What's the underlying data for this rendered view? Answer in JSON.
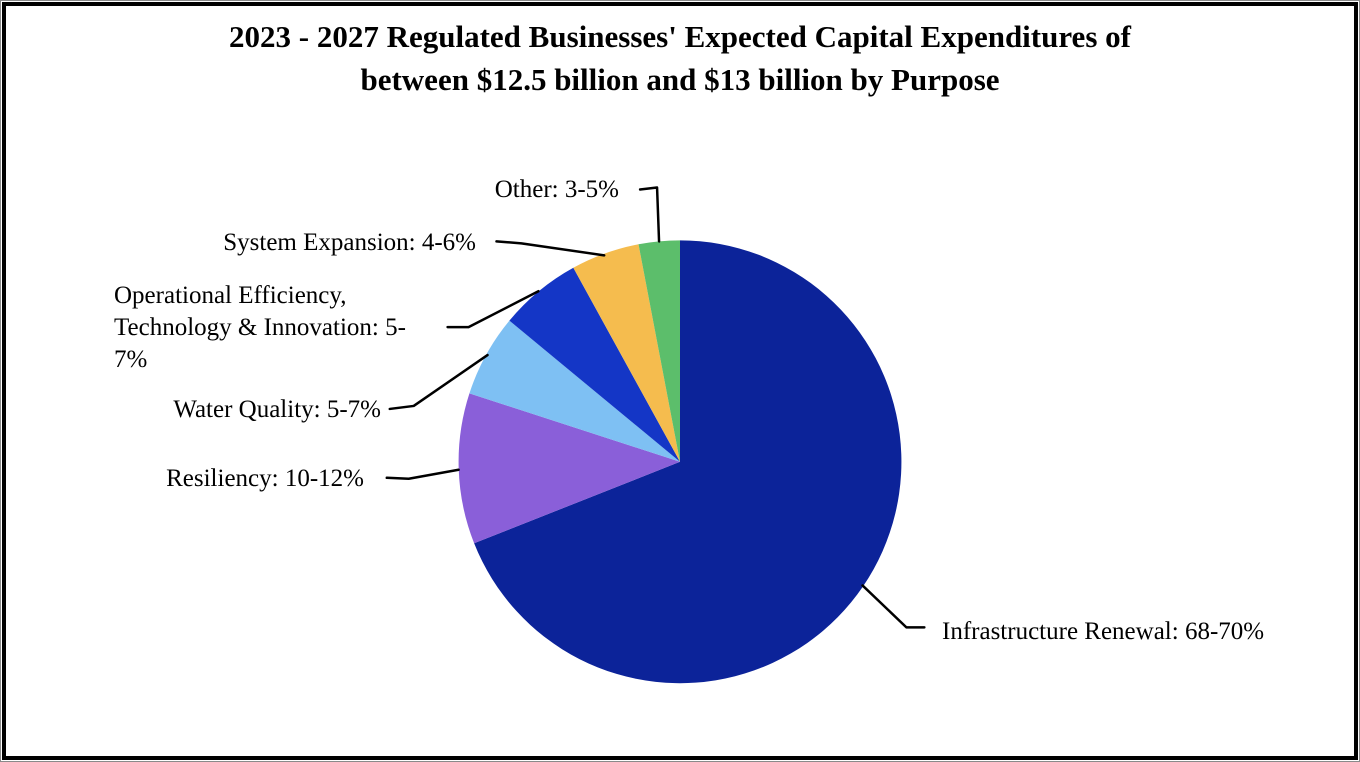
{
  "title": {
    "line1": "2023 - 2027 Regulated Businesses' Expected Capital Expenditures of",
    "line2": "between $12.5 billion and $13 billion by Purpose"
  },
  "chart_data": {
    "type": "pie",
    "title": "2023 - 2027 Regulated Businesses' Expected Capital Expenditures of between $12.5 billion and $13 billion by Purpose",
    "start_angle_deg": 0,
    "direction": "clockwise",
    "legend_position": "callout-labels",
    "slices": [
      {
        "id": "infrastructure-renewal",
        "label": "Infrastructure Renewal",
        "range": "68-70%",
        "value": 69,
        "color": "#0C2399",
        "label_text": "Infrastructure Renewal: 68-70%"
      },
      {
        "id": "resiliency",
        "label": "Resiliency",
        "range": "10-12%",
        "value": 11,
        "color": "#8A5FD9",
        "label_text": "Resiliency: 10-12%"
      },
      {
        "id": "water-quality",
        "label": "Water Quality",
        "range": "5-7%",
        "value": 6,
        "color": "#7EC0F3",
        "label_text": "Water Quality: 5-7%"
      },
      {
        "id": "operational-efficiency",
        "label": "Operational Efficiency, Technology & Innovation",
        "range": "5-7%",
        "value": 6,
        "color": "#1436C6",
        "label_text": "Operational Efficiency, Technology & Innovation: 5-7%",
        "label_lines": [
          "Operational Efficiency,",
          "Technology & Innovation: 5-",
          "7%"
        ]
      },
      {
        "id": "system-expansion",
        "label": "System Expansion",
        "range": "4-6%",
        "value": 5,
        "color": "#F5BC4E",
        "label_text": "System Expansion: 4-6%"
      },
      {
        "id": "other",
        "label": "Other",
        "range": "3-5%",
        "value": 3,
        "color": "#5CBE6B",
        "label_text": "Other: 3-5%"
      }
    ]
  }
}
